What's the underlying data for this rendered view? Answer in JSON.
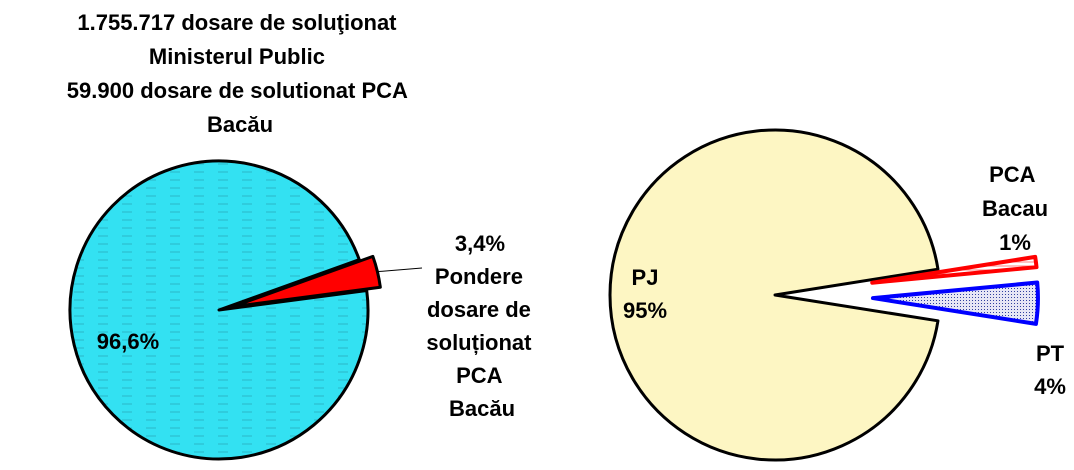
{
  "chart_data": [
    {
      "type": "pie",
      "title": "1.755.717 dosare de soluţionat Ministerul Public 59.900 dosare de solutionat PCA Bacău",
      "categories": [
        null,
        "Pondere dosare de soluționat PCA Bacău"
      ],
      "values": [
        96.6,
        3.4
      ],
      "value_labels": [
        "96,6%",
        "3,4%"
      ],
      "colors": [
        "#33e1f2",
        "#ff0000"
      ],
      "exploded": [
        false,
        true
      ]
    },
    {
      "type": "pie",
      "categories": [
        "PJ",
        "PCA Bacau",
        "PT"
      ],
      "values": [
        95,
        1,
        4
      ],
      "value_labels": [
        "95%",
        "1%",
        "4%"
      ],
      "colors": [
        "#fdf6c3",
        "#ff0000",
        "#0000ff"
      ],
      "exploded": [
        false,
        true,
        true
      ]
    }
  ]
}
